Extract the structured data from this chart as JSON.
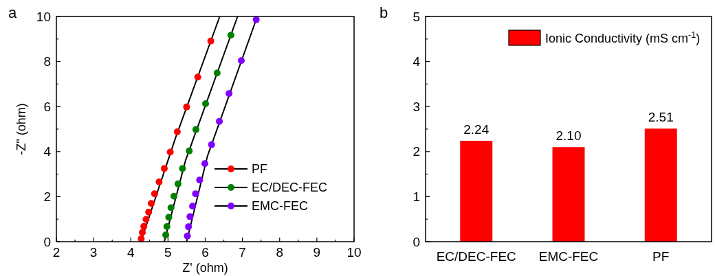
{
  "chart_data": [
    {
      "type": "scatter",
      "annotations": [
        "a"
      ],
      "xlabel": "Z' (ohm)",
      "ylabel": "-Z\" (ohm)",
      "xlim": [
        2,
        10
      ],
      "ylim": [
        0,
        10
      ],
      "xticks": [
        2,
        {
          "value": 2.5,
          "label": null
        },
        3,
        {
          "value": 3.5,
          "label": null
        },
        4,
        {
          "value": 4.5,
          "label": null
        },
        5,
        {
          "value": 5.5,
          "label": null
        },
        6,
        {
          "value": 6.5,
          "label": null
        },
        7,
        {
          "value": 7.5,
          "label": null
        },
        8,
        {
          "value": 8.5,
          "label": null
        },
        9,
        {
          "value": 9.5,
          "label": null
        },
        10
      ],
      "yticks": [
        0,
        {
          "value": 1,
          "label": null
        },
        2,
        {
          "value": 3,
          "label": null
        },
        4,
        {
          "value": 5,
          "label": null
        },
        6,
        {
          "value": 7,
          "label": null
        },
        8,
        {
          "value": 9,
          "label": null
        },
        10
      ],
      "legend": "bottom right",
      "grid": false,
      "series": [
        {
          "name": "PF",
          "type": "scatter",
          "marker": "circle",
          "color": "#ff0000",
          "x": [
            4.28,
            4.31,
            4.35,
            4.41,
            4.48,
            4.55,
            4.64,
            4.76,
            4.9,
            5.06,
            5.25,
            5.5,
            5.8,
            6.15
          ],
          "values": [
            0.13,
            0.41,
            0.68,
            0.99,
            1.31,
            1.7,
            2.13,
            2.65,
            3.25,
            3.98,
            4.88,
            5.98,
            7.31,
            8.91
          ]
        },
        {
          "name": "EC/DEC-FEC",
          "type": "scatter",
          "marker": "circle",
          "color": "#008000",
          "x": [
            4.94,
            4.97,
            5.02,
            5.08,
            5.16,
            5.27,
            5.39,
            5.57,
            5.75,
            6.01,
            6.32,
            6.69
          ],
          "values": [
            0.3,
            0.67,
            1.08,
            1.51,
            2.02,
            2.57,
            3.25,
            4.03,
            4.98,
            6.13,
            7.49,
            9.17
          ]
        },
        {
          "name": "EMC-FEC",
          "type": "scatter",
          "marker": "circle",
          "color": "#8000ff",
          "x": [
            5.52,
            5.55,
            5.59,
            5.66,
            5.74,
            5.85,
            5.99,
            6.17,
            6.38,
            6.64,
            6.97,
            7.37
          ],
          "values": [
            0.25,
            0.66,
            1.11,
            1.58,
            2.13,
            2.74,
            3.47,
            4.31,
            5.34,
            6.58,
            8.04,
            9.86
          ]
        },
        {
          "type": "line",
          "marker": "none",
          "color": "#000000",
          "x": [
            4.27,
            5.2,
            6.39
          ],
          "values": [
            0,
            4.6,
            10
          ]
        },
        {
          "type": "line",
          "marker": "none",
          "color": "#000000",
          "x": [
            4.9,
            5.47,
            6.87
          ],
          "values": [
            0,
            3.6,
            10
          ]
        },
        {
          "type": "line",
          "marker": "none",
          "color": "#000000",
          "x": [
            5.5,
            6.06,
            7.4
          ],
          "values": [
            0,
            3.8,
            10
          ]
        }
      ]
    },
    {
      "type": "bar",
      "annotations": [
        "b"
      ],
      "categories": [
        "EC/DEC-FEC",
        "EMC-FEC",
        "PF"
      ],
      "ylim": [
        0,
        5
      ],
      "yticks": [
        0,
        {
          "value": 0.5,
          "label": null
        },
        1,
        {
          "value": 1.5,
          "label": null
        },
        2,
        {
          "value": 2.5,
          "label": null
        },
        3,
        {
          "value": 3.5,
          "label": null
        },
        4,
        {
          "value": 4.5,
          "label": null
        },
        5
      ],
      "legend": "top right",
      "grid": false,
      "series": [
        {
          "name": "Ionic Conductivity (mS cm$^{-1}$)",
          "color": "#ff0000",
          "values": [
            2.24,
            2.1,
            2.51
          ],
          "value_labels": [
            "2.24",
            "2.10",
            "2.51"
          ]
        }
      ]
    }
  ]
}
